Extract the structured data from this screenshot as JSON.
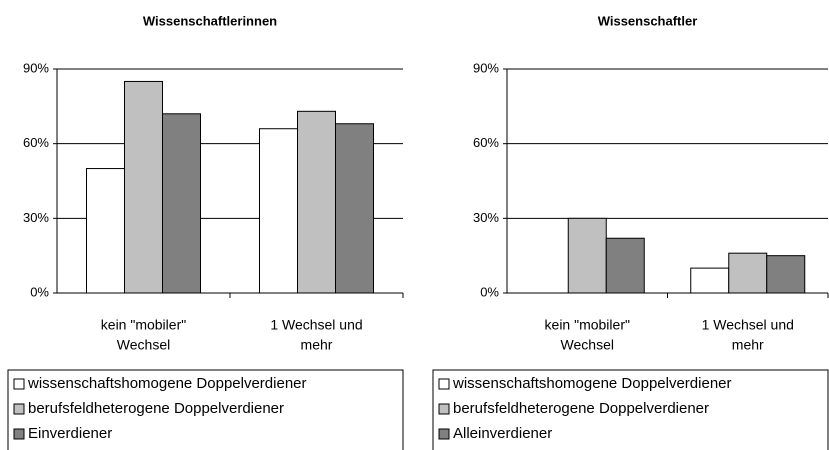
{
  "chart_data": [
    {
      "type": "bar",
      "title": "Wissenschaftlerinnen",
      "categories": [
        [
          "kein \"mobiler\"",
          "Wechsel"
        ],
        [
          "1 Wechsel und",
          "mehr"
        ]
      ],
      "series": [
        {
          "name": "wissenschaftshomogene Doppelverdiener",
          "color": "#ffffff",
          "values": [
            50,
            66
          ]
        },
        {
          "name": "berufsfeldheterogene Doppelverdiener",
          "color": "#c0c0c0",
          "values": [
            85,
            73
          ]
        },
        {
          "name": "Einverdiener",
          "color": "#808080",
          "values": [
            72,
            68
          ]
        }
      ],
      "ylim": [
        0,
        90
      ],
      "yticks": [
        {
          "value": 0,
          "label": "0%"
        },
        {
          "value": 30,
          "label": "30%"
        },
        {
          "value": 60,
          "label": "60%"
        },
        {
          "value": 90,
          "label": "90%"
        }
      ],
      "grid": true
    },
    {
      "type": "bar",
      "title": "Wissenschaftler",
      "categories": [
        [
          "kein \"mobiler\"",
          "Wechsel"
        ],
        [
          "1 Wechsel und",
          "mehr"
        ]
      ],
      "series": [
        {
          "name": "wissenschaftshomogene Doppelverdiener",
          "color": "#ffffff",
          "values": [
            0,
            10
          ]
        },
        {
          "name": "berufsfeldheterogene Doppelverdiener",
          "color": "#c0c0c0",
          "values": [
            30,
            16
          ]
        },
        {
          "name": "Alleinverdiener",
          "color": "#808080",
          "values": [
            22,
            15
          ]
        }
      ],
      "ylim": [
        0,
        90
      ],
      "yticks": [
        {
          "value": 0,
          "label": "0%"
        },
        {
          "value": 30,
          "label": "30%"
        },
        {
          "value": 60,
          "label": "60%"
        },
        {
          "value": 90,
          "label": "90%"
        }
      ],
      "grid": true
    }
  ]
}
